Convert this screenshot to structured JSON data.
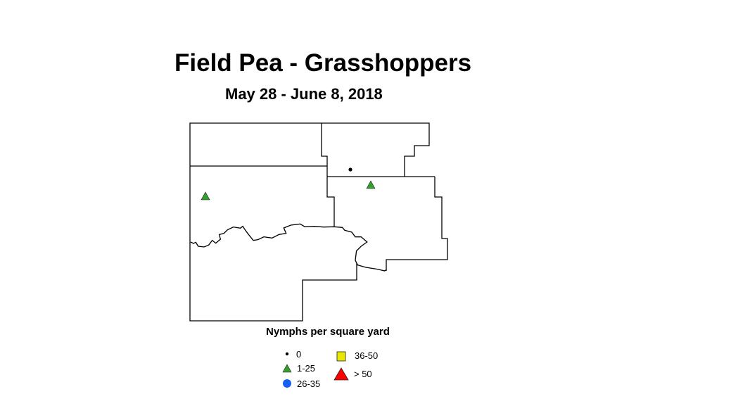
{
  "title": "Field Pea - Grasshoppers",
  "subtitle": "May 28 - June 8, 2018",
  "legend": {
    "title": "Nymphs per square yard",
    "items": [
      {
        "label": "0",
        "symbol": "dot",
        "color": "#000000"
      },
      {
        "label": "1-25",
        "symbol": "triangle",
        "color": "#33a02c"
      },
      {
        "label": "26-35",
        "symbol": "circle",
        "color": "#1560f0"
      },
      {
        "label": "36-50",
        "symbol": "square",
        "color": "#e8e800"
      },
      {
        "label": "> 50",
        "symbol": "triangle-large",
        "color": "#ff0000"
      }
    ]
  },
  "observations": [
    {
      "category": "0",
      "symbol": "dot"
    },
    {
      "category": "1-25",
      "symbol": "triangle"
    },
    {
      "category": "1-25",
      "symbol": "triangle"
    }
  ]
}
